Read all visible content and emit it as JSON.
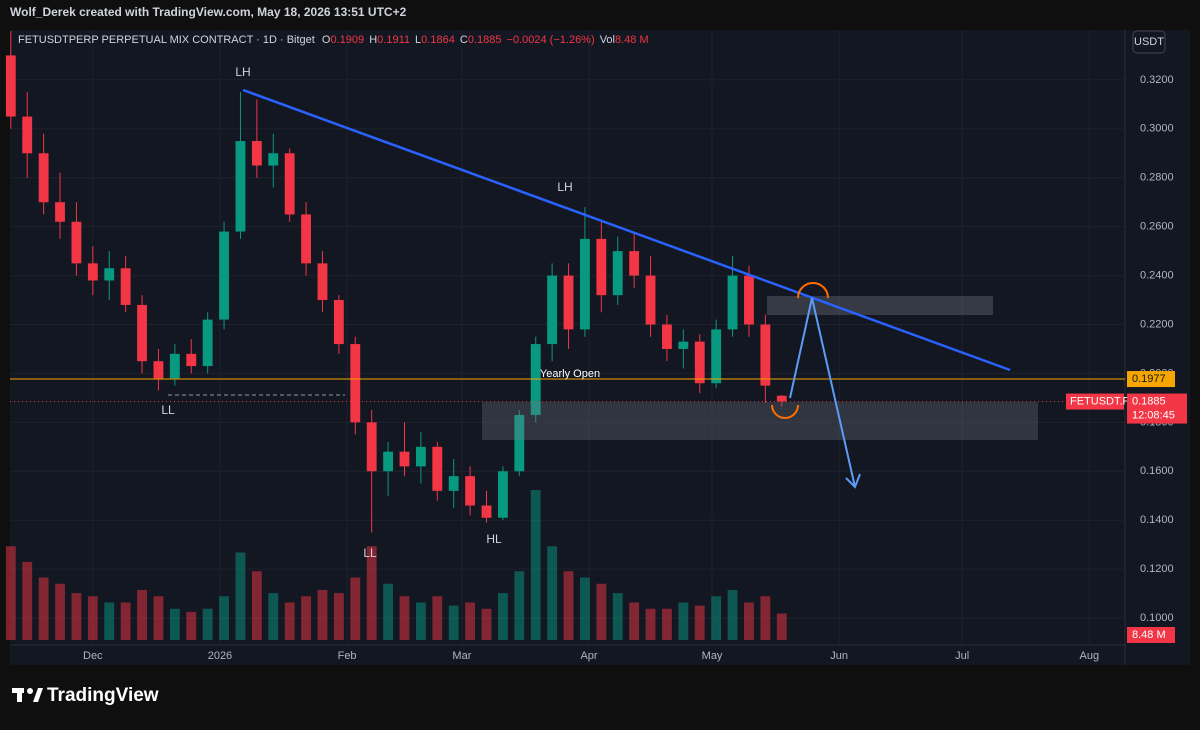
{
  "header": "Wolf_Derek created with TradingView.com, May 18, 2026 13:51 UTC+2",
  "brand": "TradingView",
  "chart_data": {
    "type": "candlestick",
    "title": "FETUSDTPERP PERPETUAL MIX CONTRACT · 1D · Bitget",
    "legend": {
      "o_label": "O",
      "open": 0.1909,
      "h_label": "H",
      "high": 0.1911,
      "l_label": "L",
      "low": 0.1864,
      "c_label": "C",
      "close": 0.1885,
      "change": "−0.0024 (−1.26%)",
      "vol_label": "Vol",
      "volume": "8.48 M"
    },
    "currency": "USDT",
    "x": [
      -20,
      -16,
      -12,
      -8,
      -4,
      0,
      4,
      8,
      12,
      16,
      20,
      24,
      28,
      32,
      36,
      40,
      44,
      48,
      52,
      56,
      60,
      64,
      68,
      72,
      76,
      80,
      84,
      88,
      92,
      96,
      100,
      104,
      108,
      112,
      116,
      120,
      124,
      128,
      132,
      136,
      140,
      144,
      148,
      152,
      156,
      160,
      164,
      168
    ],
    "open": [
      0.33,
      0.305,
      0.29,
      0.27,
      0.262,
      0.245,
      0.238,
      0.243,
      0.228,
      0.205,
      0.198,
      0.208,
      0.203,
      0.222,
      0.258,
      0.295,
      0.285,
      0.29,
      0.265,
      0.245,
      0.23,
      0.212,
      0.18,
      0.16,
      0.168,
      0.162,
      0.17,
      0.152,
      0.158,
      0.146,
      0.141,
      0.16,
      0.183,
      0.212,
      0.24,
      0.218,
      0.255,
      0.232,
      0.25,
      0.24,
      0.22,
      0.21,
      0.213,
      0.196,
      0.218,
      0.24,
      0.22,
      0.1909
    ],
    "high": [
      0.34,
      0.315,
      0.298,
      0.282,
      0.27,
      0.252,
      0.25,
      0.248,
      0.232,
      0.21,
      0.212,
      0.214,
      0.225,
      0.262,
      0.315,
      0.312,
      0.298,
      0.292,
      0.27,
      0.25,
      0.232,
      0.215,
      0.185,
      0.172,
      0.18,
      0.176,
      0.172,
      0.165,
      0.162,
      0.152,
      0.162,
      0.185,
      0.215,
      0.245,
      0.245,
      0.268,
      0.262,
      0.256,
      0.258,
      0.248,
      0.224,
      0.218,
      0.216,
      0.222,
      0.248,
      0.244,
      0.224,
      0.1911
    ],
    "low": [
      0.3,
      0.28,
      0.265,
      0.255,
      0.24,
      0.232,
      0.23,
      0.225,
      0.2,
      0.193,
      0.195,
      0.2,
      0.2,
      0.218,
      0.255,
      0.28,
      0.276,
      0.262,
      0.24,
      0.225,
      0.208,
      0.175,
      0.135,
      0.15,
      0.158,
      0.155,
      0.148,
      0.145,
      0.142,
      0.139,
      0.14,
      0.158,
      0.18,
      0.205,
      0.21,
      0.215,
      0.225,
      0.228,
      0.235,
      0.215,
      0.205,
      0.202,
      0.192,
      0.194,
      0.215,
      0.215,
      0.188,
      0.1864
    ],
    "close": [
      0.305,
      0.29,
      0.27,
      0.262,
      0.245,
      0.238,
      0.243,
      0.228,
      0.205,
      0.198,
      0.208,
      0.203,
      0.222,
      0.258,
      0.295,
      0.285,
      0.29,
      0.265,
      0.245,
      0.23,
      0.212,
      0.18,
      0.16,
      0.168,
      0.162,
      0.17,
      0.152,
      0.158,
      0.146,
      0.141,
      0.16,
      0.183,
      0.212,
      0.24,
      0.218,
      0.255,
      0.232,
      0.25,
      0.24,
      0.22,
      0.21,
      0.213,
      0.196,
      0.218,
      0.24,
      0.22,
      0.195,
      0.1885
    ],
    "volume": [
      30,
      25,
      20,
      18,
      15,
      14,
      12,
      12,
      16,
      14,
      10,
      9,
      10,
      14,
      28,
      22,
      15,
      12,
      14,
      16,
      15,
      20,
      30,
      18,
      14,
      12,
      14,
      11,
      12,
      10,
      15,
      22,
      48,
      30,
      22,
      20,
      18,
      15,
      12,
      10,
      10,
      12,
      11,
      14,
      16,
      12,
      14,
      8.48
    ],
    "up_color": "#089981",
    "down_color": "#f23645",
    "xlim": [
      -20.2,
      251.7
    ],
    "xticks": [
      {
        "value": 0,
        "label": "Dec"
      },
      {
        "value": 31,
        "label": "2026"
      },
      {
        "value": 62,
        "label": "Feb"
      },
      {
        "value": 90,
        "label": "Mar"
      },
      {
        "value": 121,
        "label": "Apr"
      },
      {
        "value": 151,
        "label": "May"
      },
      {
        "value": 182,
        "label": "Jun"
      },
      {
        "value": 212,
        "label": "Jul"
      },
      {
        "value": 243,
        "label": "Aug"
      }
    ],
    "ylim": [
      0.0808,
      0.3404
    ],
    "yticks": [
      {
        "value": 0.32,
        "label": "0.3200"
      },
      {
        "value": 0.3,
        "label": "0.3000"
      },
      {
        "value": 0.28,
        "label": "0.2800"
      },
      {
        "value": 0.26,
        "label": "0.2600"
      },
      {
        "value": 0.24,
        "label": "0.2400"
      },
      {
        "value": 0.22,
        "label": "0.2200"
      },
      {
        "value": 0.2,
        "label": "0.2000"
      },
      {
        "value": 0.18,
        "label": "0.1800"
      },
      {
        "value": 0.16,
        "label": "0.1600"
      },
      {
        "value": 0.14,
        "label": "0.1400"
      },
      {
        "value": 0.12,
        "label": "0.1200"
      },
      {
        "value": 0.1,
        "label": "0.1000"
      }
    ],
    "yearly_open": {
      "value": 0.1977,
      "name": "Yearly Open",
      "color": "#f7a600"
    },
    "last_price": {
      "value": 0.1885,
      "symbol": "FETUSDT.P",
      "countdown": "12:08:45"
    },
    "volume_label": "8.48 M",
    "annotations": [
      "LH",
      "LH",
      "LL",
      "LL",
      "HL"
    ]
  }
}
